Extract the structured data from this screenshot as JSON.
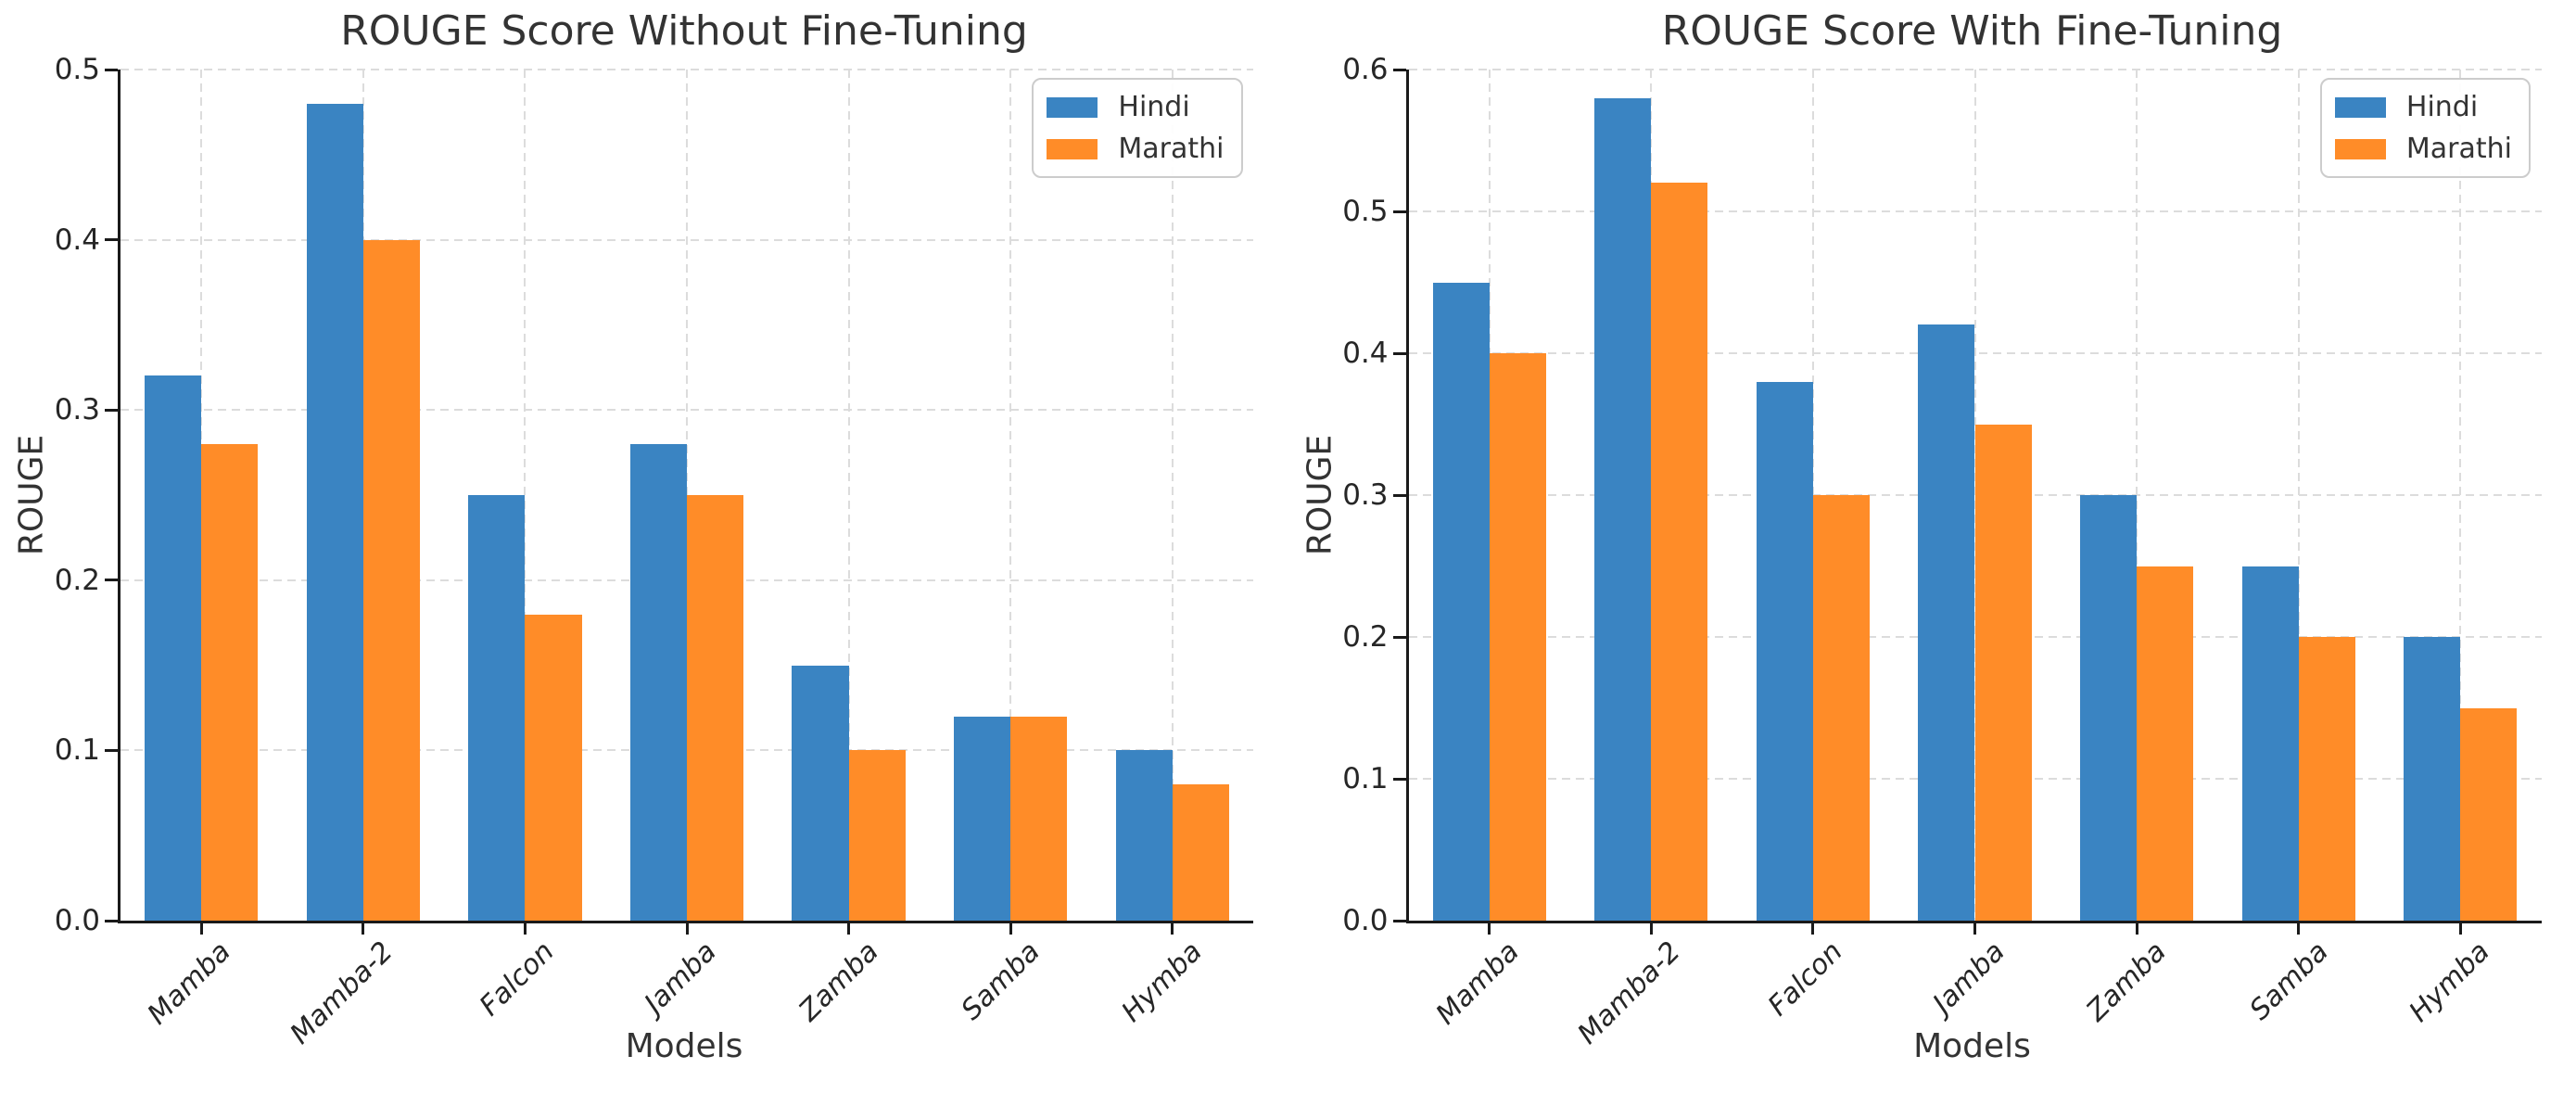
{
  "figure": {
    "background": "#ffffff",
    "text_color": "#333333",
    "tick_color": "#262626",
    "spine_color": "#1a1a1a",
    "grid_color": "#dcdcdc"
  },
  "chart_data": [
    {
      "type": "bar",
      "title": "ROUGE Score Without Fine-Tuning",
      "xlabel": "Models",
      "ylabel": "ROUGE",
      "categories": [
        "Mamba",
        "Mamba-2",
        "Falcon",
        "Jamba",
        "Zamba",
        "Samba",
        "Hymba"
      ],
      "series": [
        {
          "name": "Hindi",
          "color": "#3A84C2",
          "values": [
            0.32,
            0.48,
            0.25,
            0.28,
            0.15,
            0.12,
            0.1
          ]
        },
        {
          "name": "Marathi",
          "color": "#FF8C28",
          "values": [
            0.28,
            0.4,
            0.18,
            0.25,
            0.1,
            0.12,
            0.08
          ]
        }
      ],
      "ylim": [
        0.0,
        0.5
      ],
      "yticks": [
        "0.0",
        "0.1",
        "0.2",
        "0.3",
        "0.4",
        "0.5"
      ],
      "grid": true,
      "legend_position": "upper right"
    },
    {
      "type": "bar",
      "title": "ROUGE Score With Fine-Tuning",
      "xlabel": "Models",
      "ylabel": "ROUGE",
      "categories": [
        "Mamba",
        "Mamba-2",
        "Falcon",
        "Jamba",
        "Zamba",
        "Samba",
        "Hymba"
      ],
      "series": [
        {
          "name": "Hindi",
          "color": "#3A84C2",
          "values": [
            0.45,
            0.58,
            0.38,
            0.42,
            0.3,
            0.25,
            0.2
          ]
        },
        {
          "name": "Marathi",
          "color": "#FF8C28",
          "values": [
            0.4,
            0.52,
            0.3,
            0.35,
            0.25,
            0.2,
            0.15
          ]
        }
      ],
      "ylim": [
        0.0,
        0.6
      ],
      "yticks": [
        "0.0",
        "0.1",
        "0.2",
        "0.3",
        "0.4",
        "0.5",
        "0.6"
      ],
      "grid": true,
      "legend_position": "upper right"
    }
  ]
}
